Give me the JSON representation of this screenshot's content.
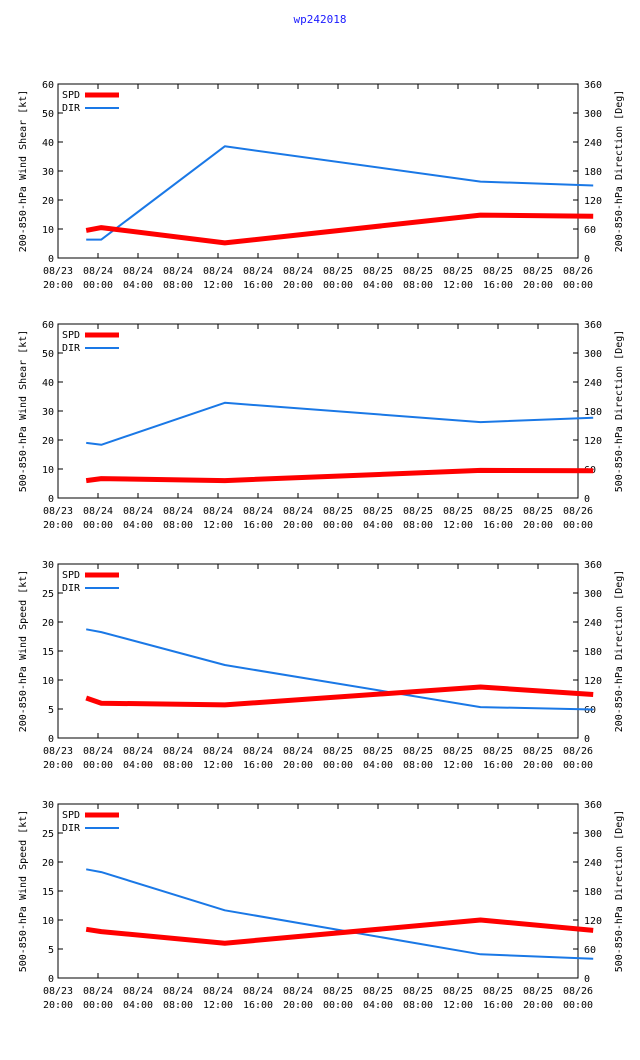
{
  "page_title": "wp242018",
  "colors": {
    "spd": "#ff0000",
    "dir": "#1a78e6",
    "title": "#1a1aff"
  },
  "chart_data": [
    {
      "type": "line",
      "ylabel": "200-850-hPa Wind Shear [kt]",
      "y2label": "200-850-hPa Direction [Deg]",
      "ylim": [
        0,
        60
      ],
      "yticks": [
        "0",
        "10",
        "20",
        "30",
        "40",
        "50",
        "60"
      ],
      "y2lim": [
        0,
        360
      ],
      "y2ticks": [
        "0",
        "60",
        "120",
        "180",
        "240",
        "300",
        "360"
      ],
      "xlim": [
        0,
        24
      ],
      "xtick_labels": [
        [
          "08/23",
          "20:00"
        ],
        [
          "08/24",
          "00:00"
        ],
        [
          "08/24",
          "04:00"
        ],
        [
          "08/24",
          "08:00"
        ],
        [
          "08/24",
          "12:00"
        ],
        [
          "08/24",
          "16:00"
        ],
        [
          "08/24",
          "20:00"
        ],
        [
          "08/25",
          "00:00"
        ],
        [
          "08/25",
          "04:00"
        ],
        [
          "08/25",
          "08:00"
        ],
        [
          "08/25",
          "12:00"
        ],
        [
          "08/25",
          "16:00"
        ],
        [
          "08/25",
          "20:00"
        ],
        [
          "08/26",
          "00:00"
        ]
      ],
      "legend": [
        "SPD",
        "DIR"
      ],
      "series": [
        {
          "name": "SPD",
          "x": [
            1.3,
            2,
            7.7,
            19.5,
            24.7
          ],
          "values": [
            9.5,
            10.5,
            5.2,
            14.8,
            14.4
          ]
        },
        {
          "name": "DIR",
          "x": [
            1.3,
            2,
            7.7,
            19.5,
            24.7
          ],
          "values": [
            38,
            38,
            231,
            158,
            150
          ]
        }
      ]
    },
    {
      "type": "line",
      "ylabel": "500-850-hPa Wind Shear [kt]",
      "y2label": "500-850-hPa Direction [Deg]",
      "ylim": [
        0,
        60
      ],
      "yticks": [
        "0",
        "10",
        "20",
        "30",
        "40",
        "50",
        "60"
      ],
      "y2lim": [
        0,
        360
      ],
      "y2ticks": [
        "0",
        "60",
        "120",
        "180",
        "240",
        "300",
        "360"
      ],
      "xlim": [
        0,
        24
      ],
      "xtick_labels": [
        [
          "08/23",
          "20:00"
        ],
        [
          "08/24",
          "00:00"
        ],
        [
          "08/24",
          "04:00"
        ],
        [
          "08/24",
          "08:00"
        ],
        [
          "08/24",
          "12:00"
        ],
        [
          "08/24",
          "16:00"
        ],
        [
          "08/24",
          "20:00"
        ],
        [
          "08/25",
          "00:00"
        ],
        [
          "08/25",
          "04:00"
        ],
        [
          "08/25",
          "08:00"
        ],
        [
          "08/25",
          "12:00"
        ],
        [
          "08/25",
          "16:00"
        ],
        [
          "08/25",
          "20:00"
        ],
        [
          "08/26",
          "00:00"
        ]
      ],
      "legend": [
        "SPD",
        "DIR"
      ],
      "series": [
        {
          "name": "SPD",
          "x": [
            1.3,
            2,
            7.7,
            19.5,
            24.7
          ],
          "values": [
            6,
            6.7,
            6.0,
            9.5,
            9.4
          ]
        },
        {
          "name": "DIR",
          "x": [
            1.3,
            2,
            7.7,
            19.5,
            24.7
          ],
          "values": [
            114,
            110,
            197,
            157,
            166
          ]
        }
      ]
    },
    {
      "type": "line",
      "ylabel": "200-850-hPa Wind Speed [kt]",
      "y2label": "200-850-hPa Direction [Deg]",
      "ylim": [
        0,
        30
      ],
      "yticks": [
        "0",
        "5",
        "10",
        "15",
        "20",
        "25",
        "30"
      ],
      "y2lim": [
        0,
        360
      ],
      "y2ticks": [
        "0",
        "60",
        "120",
        "180",
        "240",
        "300",
        "360"
      ],
      "xlim": [
        0,
        24
      ],
      "xtick_labels": [
        [
          "08/23",
          "20:00"
        ],
        [
          "08/24",
          "00:00"
        ],
        [
          "08/24",
          "04:00"
        ],
        [
          "08/24",
          "08:00"
        ],
        [
          "08/24",
          "12:00"
        ],
        [
          "08/24",
          "16:00"
        ],
        [
          "08/24",
          "20:00"
        ],
        [
          "08/25",
          "00:00"
        ],
        [
          "08/25",
          "04:00"
        ],
        [
          "08/25",
          "08:00"
        ],
        [
          "08/25",
          "12:00"
        ],
        [
          "08/25",
          "16:00"
        ],
        [
          "08/25",
          "20:00"
        ],
        [
          "08/26",
          "00:00"
        ]
      ],
      "legend": [
        "SPD",
        "DIR"
      ],
      "series": [
        {
          "name": "SPD",
          "x": [
            1.3,
            2,
            7.7,
            19.5,
            24.7
          ],
          "values": [
            6.9,
            6.0,
            5.7,
            8.8,
            7.5
          ]
        },
        {
          "name": "DIR",
          "x": [
            1.3,
            2,
            7.7,
            19.5,
            24.7
          ],
          "values": [
            225,
            219,
            151,
            64,
            59
          ]
        }
      ]
    },
    {
      "type": "line",
      "ylabel": "500-850-hPa Wind Speed [kt]",
      "y2label": "500-850-hPa Direction [Deg]",
      "ylim": [
        0,
        30
      ],
      "yticks": [
        "0",
        "5",
        "10",
        "15",
        "20",
        "25",
        "30"
      ],
      "y2lim": [
        0,
        360
      ],
      "y2ticks": [
        "0",
        "60",
        "120",
        "180",
        "240",
        "300",
        "360"
      ],
      "xlim": [
        0,
        24
      ],
      "xtick_labels": [
        [
          "08/23",
          "20:00"
        ],
        [
          "08/24",
          "00:00"
        ],
        [
          "08/24",
          "04:00"
        ],
        [
          "08/24",
          "08:00"
        ],
        [
          "08/24",
          "12:00"
        ],
        [
          "08/24",
          "16:00"
        ],
        [
          "08/24",
          "20:00"
        ],
        [
          "08/25",
          "00:00"
        ],
        [
          "08/25",
          "04:00"
        ],
        [
          "08/25",
          "08:00"
        ],
        [
          "08/25",
          "12:00"
        ],
        [
          "08/25",
          "16:00"
        ],
        [
          "08/25",
          "20:00"
        ],
        [
          "08/26",
          "00:00"
        ]
      ],
      "legend": [
        "SPD",
        "DIR"
      ],
      "series": [
        {
          "name": "SPD",
          "x": [
            1.3,
            2,
            7.7,
            19.5,
            24.7
          ],
          "values": [
            8.4,
            8.0,
            6.0,
            10.0,
            8.2
          ]
        },
        {
          "name": "DIR",
          "x": [
            1.3,
            2,
            7.7,
            19.5,
            24.7
          ],
          "values": [
            225,
            219,
            140,
            49,
            40
          ]
        }
      ]
    }
  ]
}
